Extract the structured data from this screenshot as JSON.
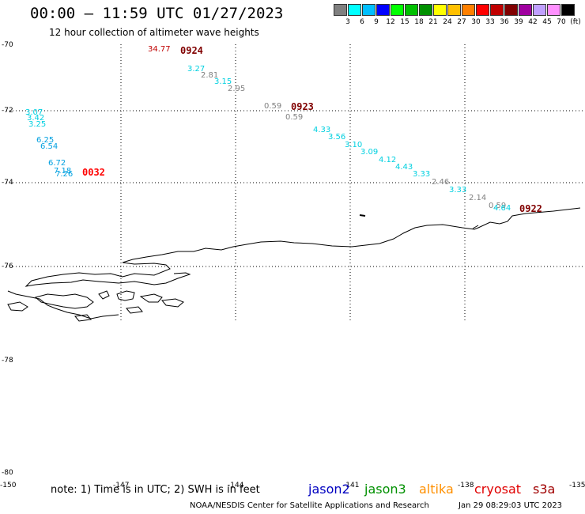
{
  "header": {
    "title": "00:00 — 11:59 UTC 01/27/2023",
    "subtitle": "12 hour collection of altimeter wave heights"
  },
  "colorbar": {
    "colors": [
      "#808080",
      "#00ffff",
      "#00bfff",
      "#0000ff",
      "#00ff00",
      "#00c000",
      "#009000",
      "#ffff00",
      "#ffc000",
      "#ff8000",
      "#ff0000",
      "#c00000",
      "#800000",
      "#a000a0",
      "#c0a0ff",
      "#ff90ff",
      "#000000"
    ],
    "labels": [
      "3",
      "6",
      "9",
      "12",
      "15",
      "18",
      "21",
      "24",
      "27",
      "30",
      "33",
      "36",
      "39",
      "42",
      "45",
      "70",
      "(ft)"
    ]
  },
  "axes": {
    "lat_labels": [
      "-70",
      "-72",
      "-74",
      "-76",
      "-78",
      "-80"
    ],
    "lon_labels": [
      "-150",
      "-147",
      "-144",
      "-141",
      "-138",
      "-135"
    ]
  },
  "observations": [
    {
      "v": "34.77",
      "color": "#c00000"
    },
    {
      "v": "3.27",
      "color": "#00d0e0"
    },
    {
      "v": "2.81",
      "color": "#808080"
    },
    {
      "v": "3.15",
      "color": "#00d0e0"
    },
    {
      "v": "2.95",
      "color": "#808080"
    },
    {
      "v": "0.59",
      "color": "#808080"
    },
    {
      "v": "0.59",
      "color": "#808080"
    },
    {
      "v": "4.33",
      "color": "#00d0e0"
    },
    {
      "v": "3.56",
      "color": "#00d0e0"
    },
    {
      "v": "3.10",
      "color": "#00d0e0"
    },
    {
      "v": "3.09",
      "color": "#00d0e0"
    },
    {
      "v": "4.12",
      "color": "#00d0e0"
    },
    {
      "v": "4.43",
      "color": "#00d0e0"
    },
    {
      "v": "3.33",
      "color": "#00d0e0"
    },
    {
      "v": "2.46",
      "color": "#808080"
    },
    {
      "v": "3.33",
      "color": "#00d0e0"
    },
    {
      "v": "2.14",
      "color": "#808080"
    },
    {
      "v": "0.59",
      "color": "#808080"
    },
    {
      "v": "4.64",
      "color": "#00d0e0"
    },
    {
      "v": "3.07",
      "color": "#00d0e0"
    },
    {
      "v": "3.42",
      "color": "#00d0e0"
    },
    {
      "v": "3.25",
      "color": "#00d0e0"
    },
    {
      "v": "6.25",
      "color": "#00a0e0"
    },
    {
      "v": "6.54",
      "color": "#00a0e0"
    },
    {
      "v": "6.72",
      "color": "#00a0e0"
    },
    {
      "v": "7.18",
      "color": "#00a0e0"
    },
    {
      "v": "7.26",
      "color": "#00a0e0"
    }
  ],
  "pass_times": [
    {
      "t": "0924",
      "color": "#800000"
    },
    {
      "t": "0923",
      "color": "#800000"
    },
    {
      "t": "0922",
      "color": "#800000"
    },
    {
      "t": "0032",
      "color": "#ff0000"
    }
  ],
  "footer": {
    "note": "note: 1) Time is in UTC; 2) SWH is in feet",
    "legend": [
      {
        "name": "jason2",
        "color": "#0000c0"
      },
      {
        "name": "jason3",
        "color": "#009000"
      },
      {
        "name": "altika",
        "color": "#ff9000"
      },
      {
        "name": "cryosat",
        "color": "#e00000"
      },
      {
        "name": "s3a",
        "color": "#a00000"
      }
    ],
    "credit": "NOAA/NESDIS Center for Satellite Applications and Research",
    "timestamp": "Jan 29 08:29:03 UTC 2023"
  }
}
